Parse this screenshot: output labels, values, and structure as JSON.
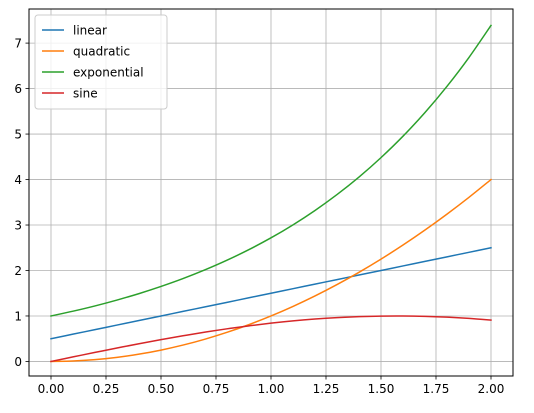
{
  "chart_data": {
    "type": "line",
    "title": "",
    "xlabel": "",
    "ylabel": "",
    "xlim": [
      -0.1,
      2.1
    ],
    "ylim": [
      -0.32,
      7.75
    ],
    "grid": true,
    "legend_position": "top-left",
    "x_ticks": [
      0.0,
      0.25,
      0.5,
      0.75,
      1.0,
      1.25,
      1.5,
      1.75,
      2.0
    ],
    "x_tick_labels": [
      "0.00",
      "0.25",
      "0.50",
      "0.75",
      "1.00",
      "1.25",
      "1.50",
      "1.75",
      "2.00"
    ],
    "y_ticks": [
      0,
      1,
      2,
      3,
      4,
      5,
      6,
      7
    ],
    "y_tick_labels": [
      "0",
      "1",
      "2",
      "3",
      "4",
      "5",
      "6",
      "7"
    ],
    "x": [
      0.0,
      0.1,
      0.2,
      0.3,
      0.4,
      0.5,
      0.6,
      0.7,
      0.8,
      0.9,
      1.0,
      1.1,
      1.2,
      1.3,
      1.4,
      1.5,
      1.6,
      1.7,
      1.8,
      1.9,
      2.0
    ],
    "series": [
      {
        "name": "linear",
        "color": "#1f77b4",
        "values": [
          0.5,
          0.6,
          0.7,
          0.8,
          0.9,
          1.0,
          1.1,
          1.2,
          1.3,
          1.4,
          1.5,
          1.6,
          1.7,
          1.8,
          1.9,
          2.0,
          2.1,
          2.2,
          2.3,
          2.4,
          2.5
        ]
      },
      {
        "name": "quadratic",
        "color": "#ff7f0e",
        "values": [
          0.0,
          0.01,
          0.04,
          0.09,
          0.16,
          0.25,
          0.36,
          0.49,
          0.64,
          0.81,
          1.0,
          1.21,
          1.44,
          1.69,
          1.96,
          2.25,
          2.56,
          2.89,
          3.24,
          3.61,
          4.0
        ]
      },
      {
        "name": "exponential",
        "color": "#2ca02c",
        "values": [
          1.0,
          1.105,
          1.221,
          1.35,
          1.492,
          1.649,
          1.822,
          2.014,
          2.226,
          2.46,
          2.718,
          3.004,
          3.32,
          3.669,
          4.055,
          4.482,
          4.953,
          5.474,
          6.05,
          6.686,
          7.389
        ]
      },
      {
        "name": "sine",
        "color": "#d62728",
        "values": [
          0.0,
          0.0998,
          0.1987,
          0.2955,
          0.3894,
          0.4794,
          0.5646,
          0.6442,
          0.7174,
          0.7833,
          0.8415,
          0.8912,
          0.932,
          0.9636,
          0.9854,
          0.9975,
          0.9996,
          0.9917,
          0.9738,
          0.9463,
          0.9093
        ]
      }
    ]
  }
}
